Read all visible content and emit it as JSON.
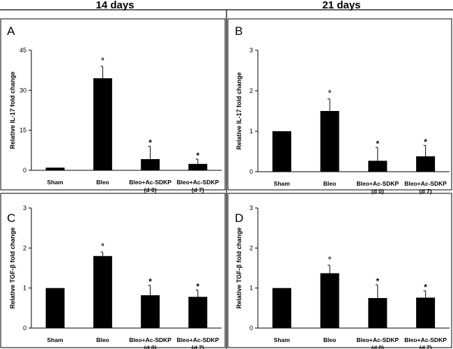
{
  "figure": {
    "header_left": "14 days",
    "header_right": "21 days",
    "bar_color": "#000000"
  },
  "chart_data": [
    {
      "panel": "A",
      "type": "bar",
      "ylabel": "Relative IL-17 fold change",
      "ylim": [
        0,
        45
      ],
      "yticks": [
        "0",
        "15",
        "30",
        "45"
      ],
      "categories": [
        [
          "Sham"
        ],
        [
          "Bleo"
        ],
        [
          "Bleo+Ac-SDKP",
          "(d 0)"
        ],
        [
          "Bleo+Ac-SDKP",
          "(d 7)"
        ]
      ],
      "values": [
        1,
        34.5,
        4.2,
        2.4
      ],
      "errors": [
        0,
        4.5,
        4.8,
        1.8
      ],
      "markers": [
        "",
        "°",
        "*",
        "*"
      ]
    },
    {
      "panel": "B",
      "type": "bar",
      "ylabel": "Relative IL-17 fold change",
      "ylim": [
        0,
        3
      ],
      "yticks": [
        "0",
        "1",
        "2",
        "3"
      ],
      "categories": [
        [
          "Sham"
        ],
        [
          "Bleo"
        ],
        [
          "Bleo+Ac-SDKP",
          "(d 0)"
        ],
        [
          "Bleo+Ac-SDKP",
          "(d 7)"
        ]
      ],
      "values": [
        1.0,
        1.5,
        0.27,
        0.38
      ],
      "errors": [
        0,
        0.3,
        0.33,
        0.27
      ],
      "markers": [
        "",
        "°",
        "*",
        "*"
      ]
    },
    {
      "panel": "C",
      "type": "bar",
      "ylabel": "Relative TGF-β fold change",
      "ylim": [
        0,
        3
      ],
      "yticks": [
        "0",
        "1",
        "2",
        "3"
      ],
      "categories": [
        [
          "Sham"
        ],
        [
          "Bleo"
        ],
        [
          "Bleo+Ac-SDKP",
          "(d 0)"
        ],
        [
          "Bleo+Ac-SDKP",
          "(d 7)"
        ]
      ],
      "values": [
        1.0,
        1.8,
        0.82,
        0.78
      ],
      "errors": [
        0,
        0.1,
        0.25,
        0.17
      ],
      "markers": [
        "",
        "°",
        "*",
        "*"
      ]
    },
    {
      "panel": "D",
      "type": "bar",
      "ylabel": "Relative TGF-β fold change",
      "ylim": [
        0,
        3
      ],
      "yticks": [
        "0",
        "1",
        "2",
        "3"
      ],
      "categories": [
        [
          "Sham"
        ],
        [
          "Bleo"
        ],
        [
          "Bleo+Ac-SDKP",
          "(d 0)"
        ],
        [
          "Bleo+Ac-SDKP",
          "(d 7)"
        ]
      ],
      "values": [
        1.0,
        1.37,
        0.75,
        0.76
      ],
      "errors": [
        0,
        0.2,
        0.33,
        0.17
      ],
      "markers": [
        "",
        "°",
        "*",
        "*"
      ]
    }
  ]
}
